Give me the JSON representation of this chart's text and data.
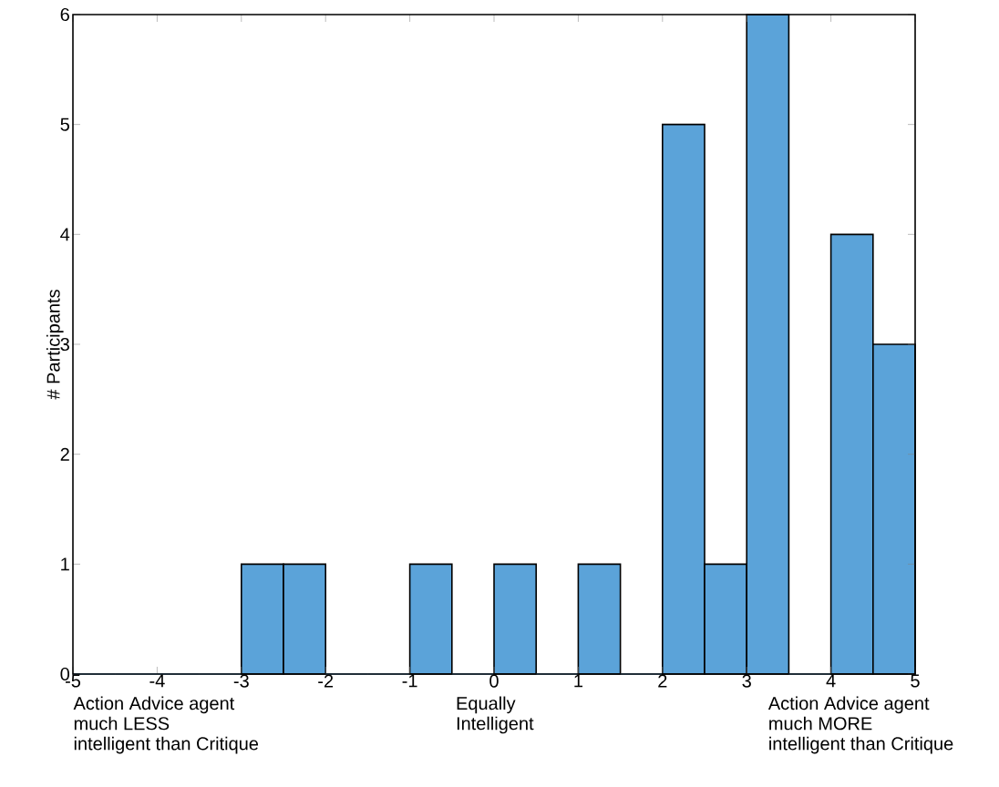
{
  "chart_data": {
    "type": "histogram",
    "ylabel": "# Participants",
    "bins": [
      -5,
      -4.5,
      -4,
      -3.5,
      -3,
      -2.5,
      -2,
      -1.5,
      -1,
      -0.5,
      0,
      0.5,
      1,
      1.5,
      2,
      2.5,
      3,
      3.5,
      4,
      4.5,
      5
    ],
    "values": [
      0,
      0,
      0,
      0,
      1,
      1,
      0,
      0,
      1,
      0,
      1,
      0,
      1,
      0,
      5,
      1,
      6,
      0,
      4,
      3
    ],
    "color": "#5ba3d9",
    "xlim": [
      -5,
      5
    ],
    "xticks": [
      -5,
      -4,
      -3,
      -2,
      -1,
      0,
      1,
      2,
      3,
      4,
      5
    ],
    "ylim": [
      0,
      6
    ],
    "yticks": [
      0,
      1,
      2,
      3,
      4,
      5,
      6
    ],
    "annotations": [
      "Action Advice agent",
      "much LESS",
      "intelligent than Critique",
      "Equally",
      "Intelligent",
      "Action Advice agent",
      "much MORE",
      "intelligent than Critique"
    ]
  }
}
